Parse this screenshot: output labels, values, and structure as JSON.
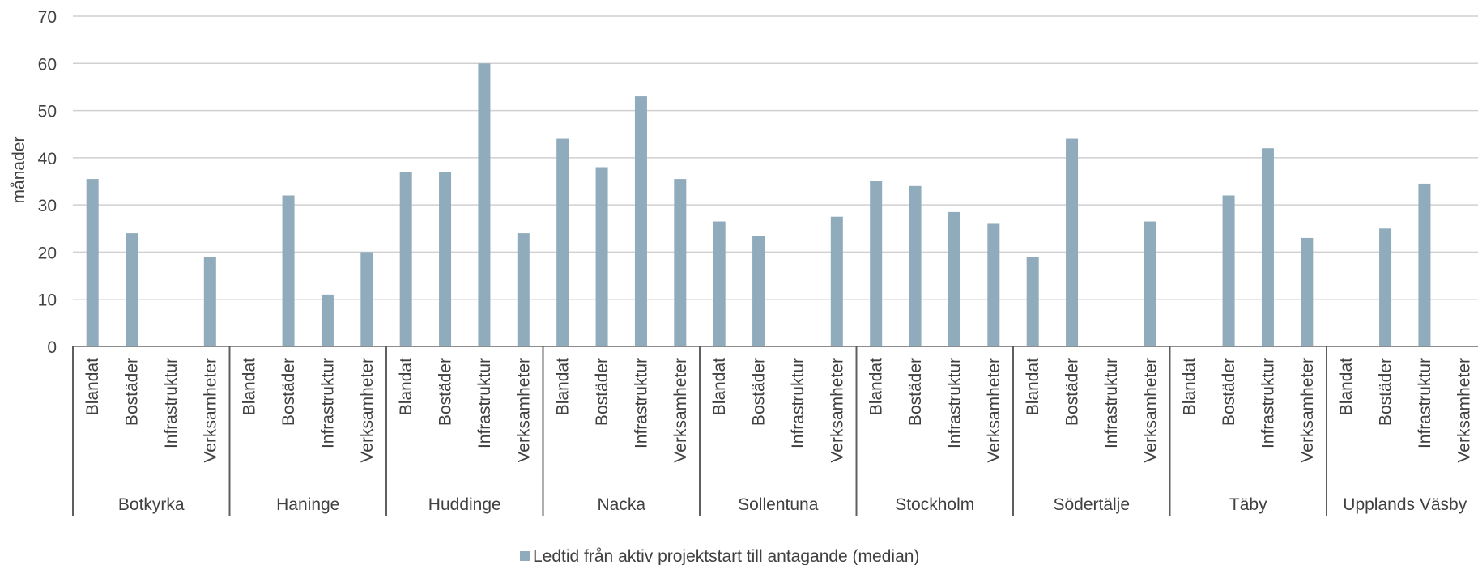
{
  "chart_data": {
    "type": "bar",
    "ylabel": "månader",
    "ylim": [
      0,
      70
    ],
    "yticks": [
      0,
      10,
      20,
      30,
      40,
      50,
      60,
      70
    ],
    "grid": true,
    "legend_position": "bottom",
    "bar_color": "#8fabbc",
    "categories": [
      "Blandat",
      "Bostäder",
      "Infrastruktur",
      "Verksamheter"
    ],
    "groups": [
      {
        "name": "Botkyrka",
        "values": [
          35.5,
          24,
          null,
          19
        ]
      },
      {
        "name": "Haninge",
        "values": [
          null,
          32,
          11,
          20
        ]
      },
      {
        "name": "Huddinge",
        "values": [
          37,
          37,
          60,
          24
        ]
      },
      {
        "name": "Nacka",
        "values": [
          44,
          38,
          53,
          35.5
        ]
      },
      {
        "name": "Sollentuna",
        "values": [
          26.5,
          23.5,
          null,
          27.5
        ]
      },
      {
        "name": "Stockholm",
        "values": [
          35,
          34,
          28.5,
          26
        ]
      },
      {
        "name": "Södertälje",
        "values": [
          19,
          44,
          null,
          26.5
        ]
      },
      {
        "name": "Täby",
        "values": [
          null,
          32,
          42,
          23
        ]
      },
      {
        "name": "Upplands Väsby",
        "values": [
          null,
          25,
          34.5,
          null
        ]
      }
    ],
    "series": [
      {
        "name": "Ledtid från aktiv projektstart till antagande (median)"
      }
    ]
  }
}
